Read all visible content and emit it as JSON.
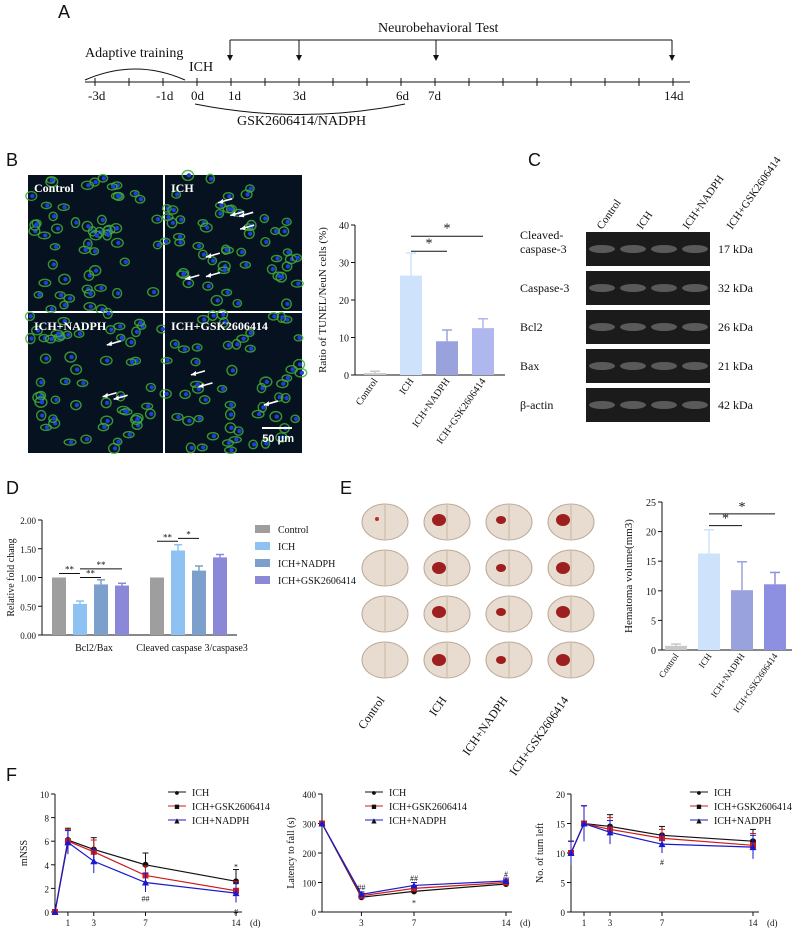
{
  "panels": {
    "a": "A",
    "b": "B",
    "c": "C",
    "d": "D",
    "e": "E",
    "f": "F"
  },
  "timeline": {
    "adaptive": "Adaptive training",
    "ich": "ICH",
    "test": "Neurobehavioral Test",
    "treatment": "GSK2606414/NADPH",
    "ticks": [
      "-3d",
      "-1d",
      "0d",
      "1d",
      "3d",
      "6d",
      "7d",
      "14d"
    ]
  },
  "micro": {
    "labels": [
      "Control",
      "ICH",
      "ICH+NADPH",
      "ICH+GSK2606414"
    ],
    "scale": "50 μm"
  },
  "chart_data": [
    {
      "type": "bar",
      "ylabel": "Ratio of TUNEL/NeuN cells (%)",
      "categories": [
        "Control",
        "ICH",
        "ICH+NADPH",
        "ICH+GSK2606414"
      ],
      "values": [
        0.5,
        26.5,
        9,
        12.5
      ],
      "errors": [
        0.5,
        6,
        3,
        2.5
      ],
      "ylim": [
        0,
        40
      ],
      "yticks": [
        "0",
        "10",
        "20",
        "30",
        "40"
      ],
      "sig": [
        "*",
        "*"
      ],
      "colors": [
        "#c8c8c8",
        "#cfe2fb",
        "#9aa2de",
        "#aeb8ef"
      ]
    },
    {
      "type": "bar",
      "ylabel": "Relative fold chang",
      "groups": [
        "Bcl2/Bax",
        "Cleaved caspase 3/caspase3"
      ],
      "series": [
        {
          "name": "Control",
          "values": [
            1.0,
            1.0
          ],
          "errors": [
            0,
            0
          ]
        },
        {
          "name": "ICH",
          "values": [
            0.54,
            1.47
          ],
          "errors": [
            0.05,
            0.1
          ]
        },
        {
          "name": "ICH+NADPH",
          "values": [
            0.88,
            1.12
          ],
          "errors": [
            0.08,
            0.08
          ]
        },
        {
          "name": "ICH+GSK2606414",
          "values": [
            0.86,
            1.35
          ],
          "errors": [
            0.04,
            0.05
          ]
        }
      ],
      "ylim": [
        0,
        2.0
      ],
      "yticks": [
        "0.00",
        "0.50",
        "1.00",
        "1.50",
        "2.00"
      ],
      "sig": [
        "**",
        "**",
        "**",
        "**",
        "*"
      ],
      "colors": [
        "#9e9e9e",
        "#8ec2f2",
        "#7d9fcb",
        "#8b88d8"
      ]
    },
    {
      "type": "bar",
      "ylabel": "Hematoma volume(mm3)",
      "categories": [
        "Control",
        "ICH",
        "ICH+NADPH",
        "ICH+GSK2606414"
      ],
      "values": [
        0.7,
        16.3,
        10.1,
        11.1
      ],
      "errors": [
        0.3,
        4,
        4.8,
        2
      ],
      "ylim": [
        0,
        25
      ],
      "yticks": [
        "0",
        "5",
        "10",
        "15",
        "20",
        "25"
      ],
      "sig": [
        "*",
        "*"
      ],
      "colors": [
        "#c8c8c8",
        "#cfe2fb",
        "#9aa2de",
        "#8d8fe0"
      ]
    },
    {
      "type": "line",
      "ylabel": "mNSS",
      "x": [
        0,
        1,
        3,
        7,
        14
      ],
      "xticks": [
        "1",
        "3",
        "7",
        "14"
      ],
      "xunit": "(d)",
      "ylim": [
        0,
        10
      ],
      "yticks": [
        "0",
        "2",
        "4",
        "6",
        "8",
        "10"
      ],
      "series": [
        {
          "name": "ICH",
          "values": [
            0,
            6.1,
            5.3,
            4.0,
            2.6
          ],
          "errors": [
            0,
            1,
            1,
            1,
            1
          ]
        },
        {
          "name": "ICH+GSK2606414",
          "values": [
            0,
            6.0,
            5.1,
            3.1,
            1.8
          ],
          "errors": [
            0,
            1,
            1,
            0.8,
            0.8
          ]
        },
        {
          "name": "ICH+NADPH",
          "values": [
            0,
            5.9,
            4.3,
            2.5,
            1.6
          ],
          "errors": [
            0,
            1,
            1,
            0.8,
            0.8
          ]
        }
      ],
      "annotations": [
        "##",
        "#",
        "*"
      ]
    },
    {
      "type": "line",
      "ylabel": "Latency to fall (s)",
      "x": [
        0,
        3,
        7,
        14
      ],
      "xticks": [
        "3",
        "7",
        "14"
      ],
      "xunit": "(d)",
      "ylim": [
        0,
        400
      ],
      "yticks": [
        "0",
        "100",
        "200",
        "300",
        "400"
      ],
      "series": [
        {
          "name": "ICH",
          "values": [
            300,
            50,
            70,
            95
          ],
          "errors": [
            0,
            8,
            10,
            10
          ]
        },
        {
          "name": "ICH+GSK2606414",
          "values": [
            300,
            55,
            80,
            100
          ],
          "errors": [
            0,
            8,
            10,
            10
          ]
        },
        {
          "name": "ICH+NADPH",
          "values": [
            300,
            60,
            90,
            105
          ],
          "errors": [
            0,
            8,
            10,
            10
          ]
        }
      ],
      "annotations": [
        "##",
        "##",
        "#",
        "*"
      ]
    },
    {
      "type": "line",
      "ylabel": "No. of turn left",
      "x": [
        0,
        1,
        3,
        7,
        14
      ],
      "xticks": [
        "1",
        "3",
        "7",
        "14"
      ],
      "xunit": "(d)",
      "ylim": [
        0,
        20
      ],
      "yticks": [
        "0",
        "5",
        "10",
        "15",
        "20"
      ],
      "series": [
        {
          "name": "ICH",
          "values": [
            10,
            15,
            14.5,
            13,
            12
          ],
          "errors": [
            2,
            3,
            2,
            1.5,
            2
          ]
        },
        {
          "name": "ICH+GSK2606414",
          "values": [
            10,
            15,
            14,
            12.5,
            11.3
          ],
          "errors": [
            2,
            3,
            2,
            1.5,
            2
          ]
        },
        {
          "name": "ICH+NADPH",
          "values": [
            10,
            15,
            13.5,
            11.5,
            11
          ],
          "errors": [
            2,
            3,
            2,
            1.5,
            2
          ]
        }
      ],
      "annotations": [
        "#"
      ]
    }
  ],
  "blot": {
    "lanes": [
      "Control",
      "ICH",
      "ICH+NADPH",
      "ICH+GSK2606414"
    ],
    "rows": [
      {
        "name": "Cleaved-\ncaspase-3",
        "kda": "17 kDa"
      },
      {
        "name": "Caspase-3",
        "kda": "32 kDa"
      },
      {
        "name": "Bcl2",
        "kda": "26 kDa"
      },
      {
        "name": "Bax",
        "kda": "21 kDa"
      },
      {
        "name": "β-actin",
        "kda": "42 kDa"
      }
    ]
  },
  "brains": {
    "labels": [
      "Control",
      "ICH",
      "ICH+NADPH",
      "ICH+GSK2606414"
    ]
  },
  "legend_symbols": {
    "ICH": "●",
    "ICH+GSK2606414": "■",
    "ICH+NADPH": "▲"
  },
  "series_colors": {
    "ICH": "#111111",
    "ICH+GSK2606414": "#d11a1a",
    "ICH+NADPH": "#1a1acc"
  }
}
